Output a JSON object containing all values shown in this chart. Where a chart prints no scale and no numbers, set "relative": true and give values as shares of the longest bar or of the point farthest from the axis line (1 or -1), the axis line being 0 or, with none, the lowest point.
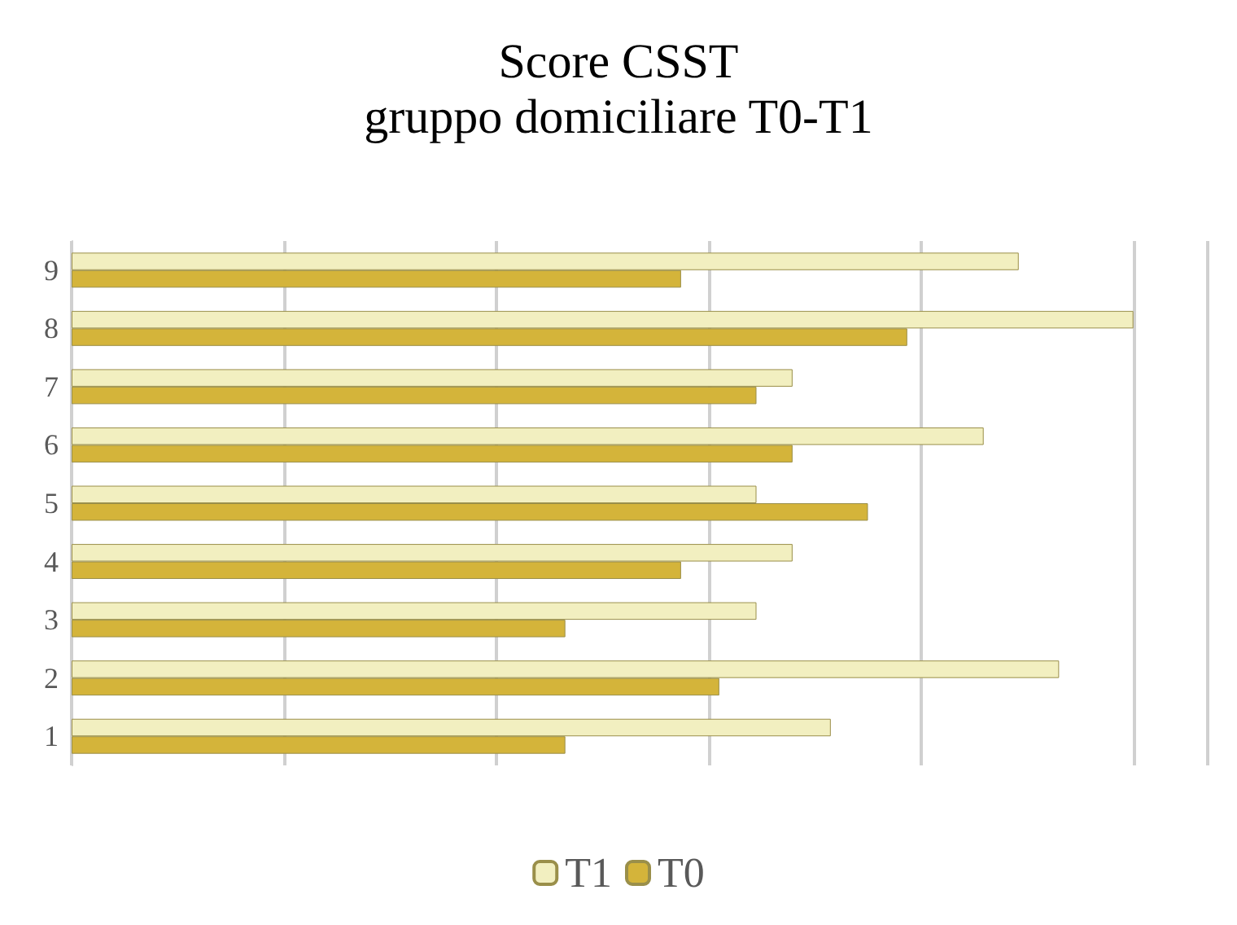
{
  "chart_data": {
    "type": "bar",
    "orientation": "horizontal",
    "relative": true,
    "title": "Score CSST",
    "subtitle": "gruppo domiciliare T0-T1",
    "categories": [
      "9",
      "8",
      "7",
      "6",
      "5",
      "4",
      "3",
      "2",
      "1"
    ],
    "series": [
      {
        "name": "T1",
        "color": "#f2efc0",
        "values": [
          0.892,
          1,
          0.679,
          0.859,
          0.645,
          0.679,
          0.645,
          0.93,
          0.715
        ]
      },
      {
        "name": "T0",
        "color": "#d4b43a",
        "values": [
          0.574,
          0.787,
          0.645,
          0.679,
          0.75,
          0.574,
          0.465,
          0.61,
          0.465
        ]
      }
    ],
    "grid": "x",
    "legend": "bottom"
  }
}
